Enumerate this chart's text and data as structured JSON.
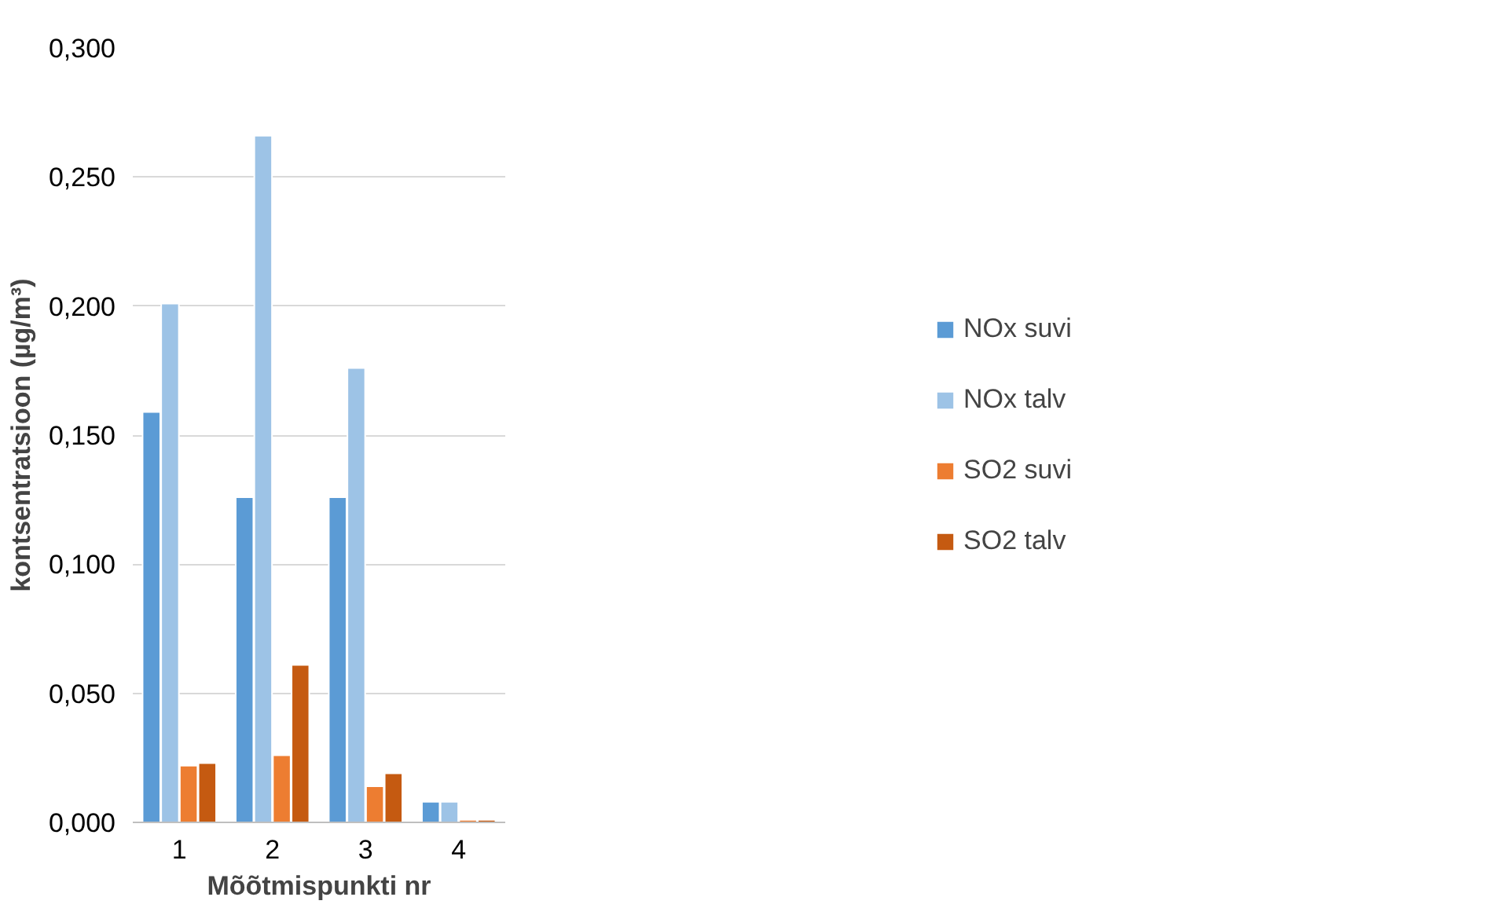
{
  "chart_data": {
    "type": "bar",
    "xlabel": "Mõõtmispunkti nr",
    "ylabel": "kontsentratsioon (µg/m³)",
    "categories": [
      "1",
      "2",
      "3",
      "4"
    ],
    "series": [
      {
        "name": "NOx suvi",
        "color": "#5b9bd5",
        "values": [
          0.159,
          0.126,
          0.126,
          0.008
        ]
      },
      {
        "name": "NOx talv",
        "color": "#9dc3e6",
        "values": [
          0.201,
          0.266,
          0.176,
          0.008
        ]
      },
      {
        "name": "SO2 suvi",
        "color": "#ed7d31",
        "values": [
          0.022,
          0.026,
          0.014,
          0.001
        ]
      },
      {
        "name": "SO2 talv",
        "color": "#c55a11",
        "values": [
          0.023,
          0.061,
          0.019,
          0.001
        ]
      }
    ],
    "ylim": [
      0,
      0.3
    ],
    "yticks": [
      {
        "value": 0,
        "label": "0,000"
      },
      {
        "value": 0.05,
        "label": "0,050"
      },
      {
        "value": 0.1,
        "label": "0,100"
      },
      {
        "value": 0.15,
        "label": "0,150"
      },
      {
        "value": 0.2,
        "label": "0,200"
      },
      {
        "value": 0.25,
        "label": "0,250"
      },
      {
        "value": 0.3,
        "label": "0,300"
      }
    ],
    "grid": "y",
    "legend": "right"
  }
}
